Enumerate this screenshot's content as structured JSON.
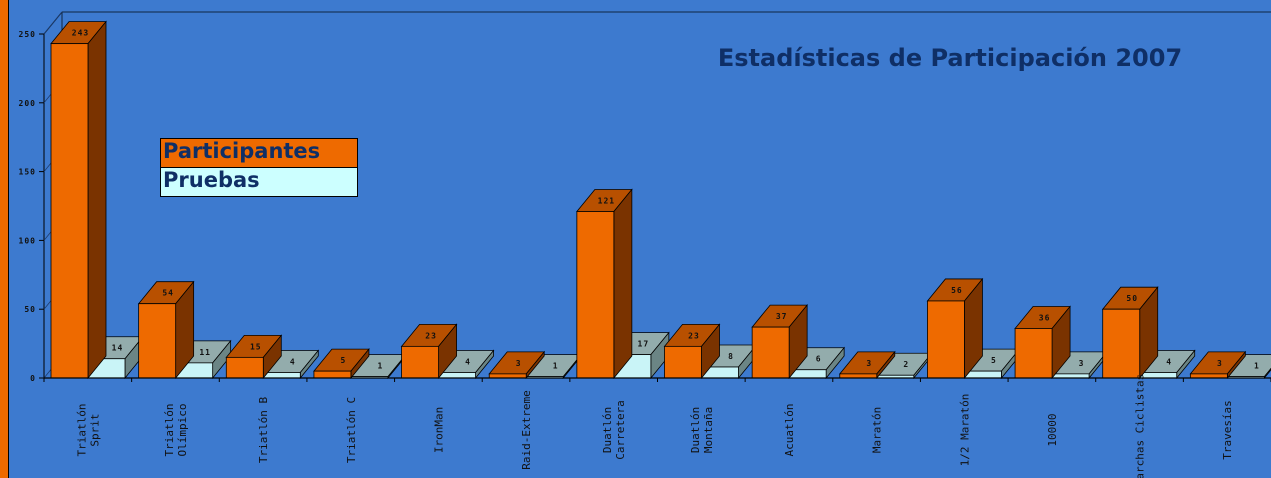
{
  "chart_data": {
    "type": "bar",
    "title": "Estadísticas de Participación 2007",
    "xlabel": "",
    "ylabel": "",
    "ylim": [
      0,
      250
    ],
    "yticks": [
      0,
      50,
      100,
      150,
      200,
      250
    ],
    "legend_position": "upper-left",
    "categories": [
      [
        "Triatlón",
        "Sprit"
      ],
      [
        "Triatlón",
        "Olímpico"
      ],
      [
        "Triatlón B"
      ],
      [
        "Triatlón C"
      ],
      [
        "IronMan"
      ],
      [
        "Raid-Extreme"
      ],
      [
        "Duatlón",
        "Carretera"
      ],
      [
        "Duatlón",
        "Montaña"
      ],
      [
        "Acuatlón"
      ],
      [
        "Maratón"
      ],
      [
        "1/2 Maratón"
      ],
      [
        "10000"
      ],
      [
        "Marchas Ciclistas"
      ],
      [
        "Travesías"
      ]
    ],
    "series": [
      {
        "name": "Participantes",
        "values": [
          243,
          54,
          15,
          5,
          23,
          3,
          121,
          23,
          37,
          3,
          56,
          36,
          50,
          3
        ]
      },
      {
        "name": "Pruebas",
        "values": [
          14,
          11,
          4,
          1,
          4,
          1,
          17,
          8,
          6,
          2,
          5,
          3,
          4,
          1
        ]
      }
    ]
  },
  "colors": {
    "background": "#3d7acf",
    "participantes_front": "#ee6a00",
    "participantes_top": "#b85000",
    "participantes_side": "#7a3300",
    "pruebas_front": "#c9f4f7",
    "pruebas_top": "#93acac",
    "pruebas_side": "#6b8585",
    "legend_participantes": "#ee6a00",
    "legend_pruebas": "#ccffff",
    "title": "#0f2f66"
  }
}
